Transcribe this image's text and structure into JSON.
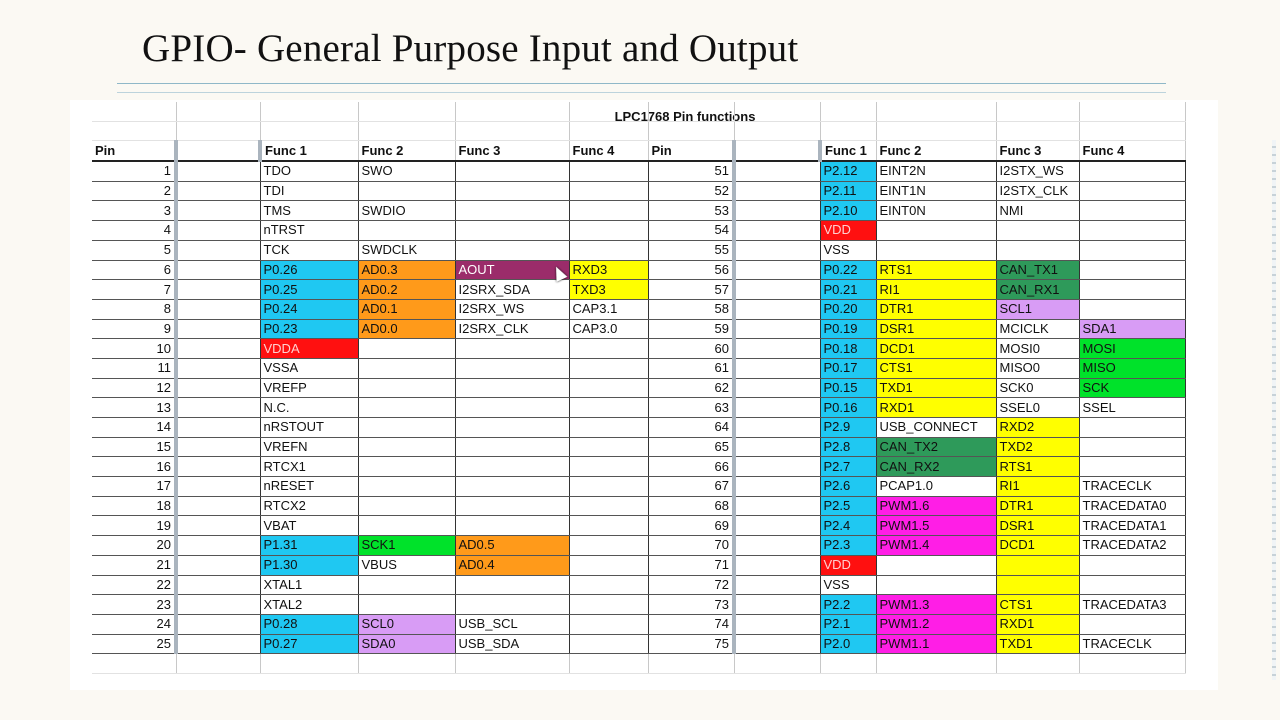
{
  "slide": {
    "title": "GPIO- General Purpose Input and Output"
  },
  "sheet": {
    "title": "LPC1768 Pin functions",
    "headers": {
      "left": [
        "Pin",
        "",
        "Func 1",
        "Func 2",
        "Func 3",
        "Func 4"
      ],
      "right": [
        "Pin",
        "",
        "Func 1",
        "Func 2",
        "Func 3",
        "Func 4"
      ]
    },
    "left_rows": [
      {
        "pin": "1",
        "f1": "TDO",
        "f2": "SWO",
        "f3": "",
        "f4": ""
      },
      {
        "pin": "2",
        "f1": "TDI",
        "f2": "",
        "f3": "",
        "f4": ""
      },
      {
        "pin": "3",
        "f1": "TMS",
        "f2": "SWDIO",
        "f3": "",
        "f4": ""
      },
      {
        "pin": "4",
        "f1": "nTRST",
        "f2": "",
        "f3": "",
        "f4": ""
      },
      {
        "pin": "5",
        "f1": "TCK",
        "f2": "SWDCLK",
        "f3": "",
        "f4": ""
      },
      {
        "pin": "6",
        "f1": "P0.26",
        "f2": "AD0.3",
        "f3": "AOUT",
        "f4": "RXD3"
      },
      {
        "pin": "7",
        "f1": "P0.25",
        "f2": "AD0.2",
        "f3": "I2SRX_SDA",
        "f4": "TXD3"
      },
      {
        "pin": "8",
        "f1": "P0.24",
        "f2": "AD0.1",
        "f3": "I2SRX_WS",
        "f4": "CAP3.1"
      },
      {
        "pin": "9",
        "f1": "P0.23",
        "f2": "AD0.0",
        "f3": "I2SRX_CLK",
        "f4": "CAP3.0"
      },
      {
        "pin": "10",
        "f1": "VDDA",
        "f2": "",
        "f3": "",
        "f4": ""
      },
      {
        "pin": "11",
        "f1": "VSSA",
        "f2": "",
        "f3": "",
        "f4": ""
      },
      {
        "pin": "12",
        "f1": "VREFP",
        "f2": "",
        "f3": "",
        "f4": ""
      },
      {
        "pin": "13",
        "f1": "N.C.",
        "f2": "",
        "f3": "",
        "f4": ""
      },
      {
        "pin": "14",
        "f1": "nRSTOUT",
        "f2": "",
        "f3": "",
        "f4": ""
      },
      {
        "pin": "15",
        "f1": "VREFN",
        "f2": "",
        "f3": "",
        "f4": ""
      },
      {
        "pin": "16",
        "f1": "RTCX1",
        "f2": "",
        "f3": "",
        "f4": ""
      },
      {
        "pin": "17",
        "f1": "nRESET",
        "f2": "",
        "f3": "",
        "f4": ""
      },
      {
        "pin": "18",
        "f1": "RTCX2",
        "f2": "",
        "f3": "",
        "f4": ""
      },
      {
        "pin": "19",
        "f1": "VBAT",
        "f2": "",
        "f3": "",
        "f4": ""
      },
      {
        "pin": "20",
        "f1": "P1.31",
        "f2": "SCK1",
        "f3": "AD0.5",
        "f4": ""
      },
      {
        "pin": "21",
        "f1": "P1.30",
        "f2": "VBUS",
        "f3": "AD0.4",
        "f4": ""
      },
      {
        "pin": "22",
        "f1": "XTAL1",
        "f2": "",
        "f3": "",
        "f4": ""
      },
      {
        "pin": "23",
        "f1": "XTAL2",
        "f2": "",
        "f3": "",
        "f4": ""
      },
      {
        "pin": "24",
        "f1": "P0.28",
        "f2": "SCL0",
        "f3": "USB_SCL",
        "f4": ""
      },
      {
        "pin": "25",
        "f1": "P0.27",
        "f2": "SDA0",
        "f3": "USB_SDA",
        "f4": ""
      }
    ],
    "right_rows": [
      {
        "pin": "51",
        "f1": "P2.12",
        "f2": "EINT2N",
        "f3": "I2STX_WS",
        "f4": ""
      },
      {
        "pin": "52",
        "f1": "P2.11",
        "f2": "EINT1N",
        "f3": "I2STX_CLK",
        "f4": ""
      },
      {
        "pin": "53",
        "f1": "P2.10",
        "f2": "EINT0N",
        "f3": "NMI",
        "f4": ""
      },
      {
        "pin": "54",
        "f1": "VDD",
        "f2": "",
        "f3": "",
        "f4": ""
      },
      {
        "pin": "55",
        "f1": "VSS",
        "f2": "",
        "f3": "",
        "f4": ""
      },
      {
        "pin": "56",
        "f1": "P0.22",
        "f2": "RTS1",
        "f3": "CAN_TX1",
        "f4": ""
      },
      {
        "pin": "57",
        "f1": "P0.21",
        "f2": "RI1",
        "f3": "CAN_RX1",
        "f4": ""
      },
      {
        "pin": "58",
        "f1": "P0.20",
        "f2": "DTR1",
        "f3": "SCL1",
        "f4": ""
      },
      {
        "pin": "59",
        "f1": "P0.19",
        "f2": "DSR1",
        "f3": "MCICLK",
        "f4": "SDA1"
      },
      {
        "pin": "60",
        "f1": "P0.18",
        "f2": "DCD1",
        "f3": "MOSI0",
        "f4": "MOSI"
      },
      {
        "pin": "61",
        "f1": "P0.17",
        "f2": "CTS1",
        "f3": "MISO0",
        "f4": "MISO"
      },
      {
        "pin": "62",
        "f1": "P0.15",
        "f2": "TXD1",
        "f3": "SCK0",
        "f4": "SCK"
      },
      {
        "pin": "63",
        "f1": "P0.16",
        "f2": "RXD1",
        "f3": "SSEL0",
        "f4": "SSEL"
      },
      {
        "pin": "64",
        "f1": "P2.9",
        "f2": "USB_CONNECT",
        "f3": "RXD2",
        "f4": ""
      },
      {
        "pin": "65",
        "f1": "P2.8",
        "f2": "CAN_TX2",
        "f3": "TXD2",
        "f4": ""
      },
      {
        "pin": "66",
        "f1": "P2.7",
        "f2": "CAN_RX2",
        "f3": "RTS1",
        "f4": ""
      },
      {
        "pin": "67",
        "f1": "P2.6",
        "f2": "PCAP1.0",
        "f3": "RI1",
        "f4": "TRACECLK"
      },
      {
        "pin": "68",
        "f1": "P2.5",
        "f2": "PWM1.6",
        "f3": "DTR1",
        "f4": "TRACEDATA0"
      },
      {
        "pin": "69",
        "f1": "P2.4",
        "f2": "PWM1.5",
        "f3": "DSR1",
        "f4": "TRACEDATA1"
      },
      {
        "pin": "70",
        "f1": "P2.3",
        "f2": "PWM1.4",
        "f3": "DCD1",
        "f4": "TRACEDATA2"
      },
      {
        "pin": "71",
        "f1": "VDD",
        "f2": "",
        "f3": "",
        "f4": ""
      },
      {
        "pin": "72",
        "f1": "VSS",
        "f2": "",
        "f3": "",
        "f4": ""
      },
      {
        "pin": "73",
        "f1": "P2.2",
        "f2": "PWM1.3",
        "f3": "CTS1",
        "f4": "TRACEDATA3"
      },
      {
        "pin": "74",
        "f1": "P2.1",
        "f2": "PWM1.2",
        "f3": "RXD1",
        "f4": ""
      },
      {
        "pin": "75",
        "f1": "P2.0",
        "f2": "PWM1.1",
        "f3": "TXD1",
        "f4": "TRACECLK"
      }
    ],
    "colors": {
      "cyan": "#1fc8f2",
      "orange": "#ff9a1a",
      "yellow": "#ffff00",
      "green": "#00e22a",
      "dark_green": "#2e9a5a",
      "lavender": "#d89cf5",
      "magenta": "#ff1ee6",
      "red": "#ff1010",
      "plum": "#9b2c6a"
    }
  }
}
